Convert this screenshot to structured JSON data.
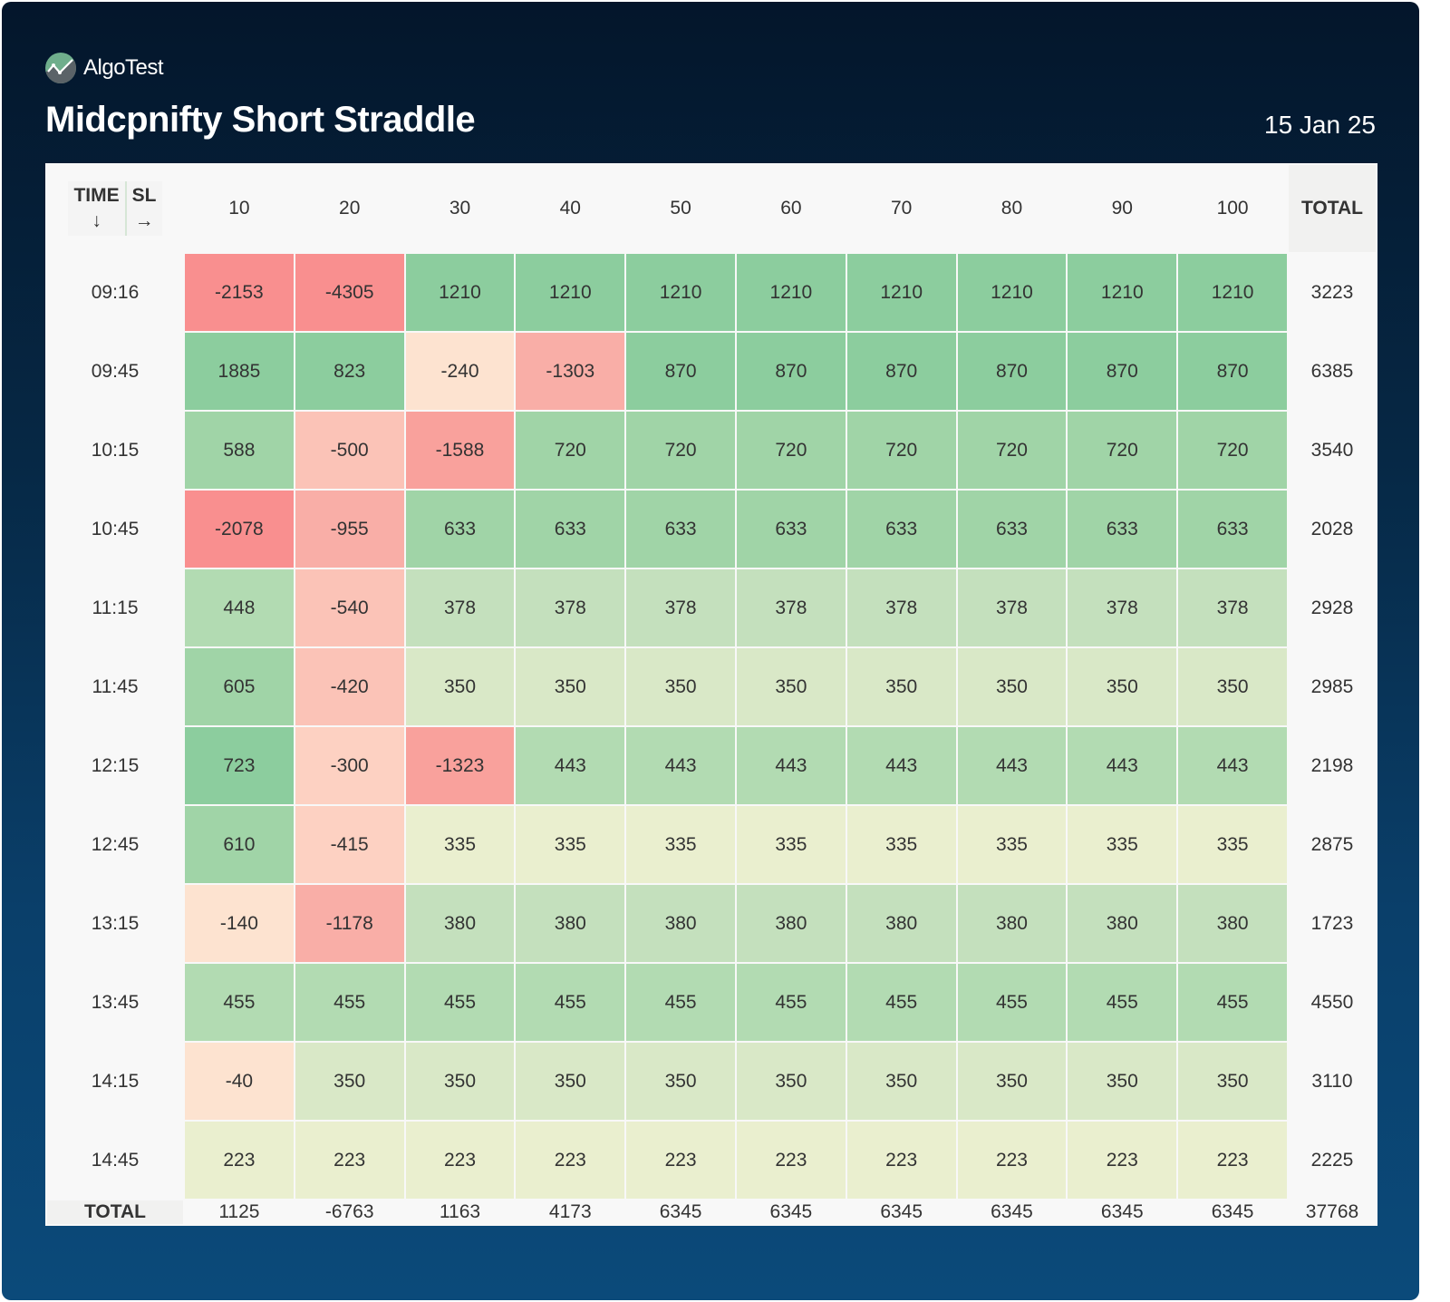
{
  "brand": {
    "name": "AlgoTest",
    "logo_icon": "chart-line-circle-icon"
  },
  "header": {
    "title": "Midcpnifty Short Straddle",
    "date": "15 Jan 25"
  },
  "table": {
    "corner": {
      "row_label": "TIME",
      "row_arrow": "↓",
      "col_label": "SL",
      "col_arrow": "→"
    },
    "total_label": "TOTAL"
  },
  "colors": {
    "strong_red": "#f98f8f",
    "red": "#f9a19c",
    "light_red": "#fbc3b7",
    "peach": "#fde3d0",
    "cream": "#eaefcf",
    "light_green": "#d9e8c7",
    "mid_green": "#c4e0bd",
    "green": "#b2dbb2",
    "green2": "#a0d4a7",
    "strong_green": "#8ccd9e"
  },
  "chart_data": {
    "type": "heatmap",
    "title": "Midcpnifty Short Straddle",
    "xlabel": "SL",
    "ylabel": "TIME",
    "x": [
      "10",
      "20",
      "30",
      "40",
      "50",
      "60",
      "70",
      "80",
      "90",
      "100"
    ],
    "y": [
      "09:16",
      "09:45",
      "10:15",
      "10:45",
      "11:15",
      "11:45",
      "12:15",
      "12:45",
      "13:15",
      "13:45",
      "14:15",
      "14:45"
    ],
    "values": [
      [
        -2153,
        -4305,
        1210,
        1210,
        1210,
        1210,
        1210,
        1210,
        1210,
        1210
      ],
      [
        1885,
        823,
        -240,
        -1303,
        870,
        870,
        870,
        870,
        870,
        870
      ],
      [
        588,
        -500,
        -1588,
        720,
        720,
        720,
        720,
        720,
        720,
        720
      ],
      [
        -2078,
        -955,
        633,
        633,
        633,
        633,
        633,
        633,
        633,
        633
      ],
      [
        448,
        -540,
        378,
        378,
        378,
        378,
        378,
        378,
        378,
        378
      ],
      [
        605,
        -420,
        350,
        350,
        350,
        350,
        350,
        350,
        350,
        350
      ],
      [
        723,
        -300,
        -1323,
        443,
        443,
        443,
        443,
        443,
        443,
        443
      ],
      [
        610,
        -415,
        335,
        335,
        335,
        335,
        335,
        335,
        335,
        335
      ],
      [
        -140,
        -1178,
        380,
        380,
        380,
        380,
        380,
        380,
        380,
        380
      ],
      [
        455,
        455,
        455,
        455,
        455,
        455,
        455,
        455,
        455,
        455
      ],
      [
        -40,
        350,
        350,
        350,
        350,
        350,
        350,
        350,
        350,
        350
      ],
      [
        223,
        223,
        223,
        223,
        223,
        223,
        223,
        223,
        223,
        223
      ]
    ],
    "row_totals": [
      "3223",
      "6385",
      "3540",
      "2028",
      "2928",
      "2985",
      "2198",
      "2875",
      "1723",
      "4550",
      "3110",
      "2225"
    ],
    "column_totals": [
      "1125",
      "-6763",
      "1163",
      "4173",
      "6345",
      "6345",
      "6345",
      "6345",
      "6345",
      "6345"
    ],
    "grand_total": "37768",
    "color_scale": "red (negative) → cream (low positive) → green (high positive)"
  }
}
